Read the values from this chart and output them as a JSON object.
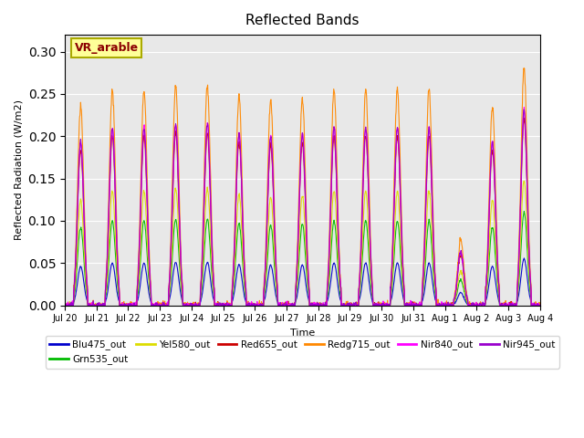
{
  "title": "Reflected Bands",
  "xlabel": "Time",
  "ylabel": "Reflected Radiation (W/m2)",
  "annotation": "VR_arable",
  "ylim": [
    0,
    0.32
  ],
  "background_color": "#e8e8e8",
  "series": [
    {
      "name": "Blu475_out",
      "color": "#0000cc",
      "amplitude": 0.05
    },
    {
      "name": "Grn535_out",
      "color": "#00bb00",
      "amplitude": 0.1
    },
    {
      "name": "Yel580_out",
      "color": "#dddd00",
      "amplitude": 0.135
    },
    {
      "name": "Red655_out",
      "color": "#cc0000",
      "amplitude": 0.2
    },
    {
      "name": "Redg715_out",
      "color": "#ff8800",
      "amplitude": 0.255
    },
    {
      "name": "Nir840_out",
      "color": "#ff00ff",
      "amplitude": 0.21
    },
    {
      "name": "Nir945_out",
      "color": "#9900cc",
      "amplitude": 0.21
    }
  ],
  "tick_labels": [
    "Jul 20",
    "Jul 21",
    "Jul 22",
    "Jul 23",
    "Jul 24",
    "Jul 25",
    "Jul 26",
    "Jul 27",
    "Jul 28",
    "Jul 29",
    "Jul 30",
    "Jul 31",
    "Aug 1",
    "Aug 2",
    "Aug 3",
    "Aug 4"
  ],
  "yticks": [
    0.0,
    0.05,
    0.1,
    0.15,
    0.2,
    0.25,
    0.3
  ],
  "day_mults": [
    0.92,
    1.0,
    1.0,
    1.02,
    1.02,
    0.97,
    0.95,
    0.96,
    1.0,
    1.0,
    1.0,
    1.0,
    0.3,
    0.92,
    1.1,
    0.98
  ]
}
